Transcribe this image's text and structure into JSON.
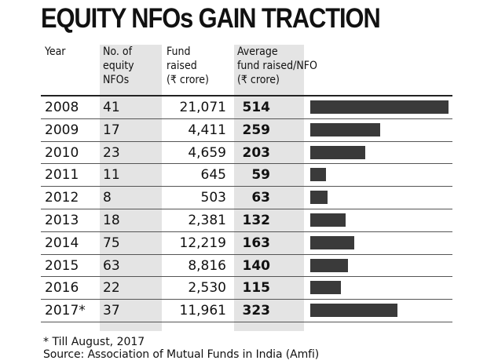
{
  "chart_data": {
    "type": "table",
    "title": "EQUITY NFOs GAIN TRACTION",
    "columns": [
      "Year",
      "No. of equity NFOs",
      "Fund raised (₹ crore)",
      "Average fund raised/NFO (₹ crore)"
    ],
    "header": {
      "year": "Year",
      "nfos": [
        "No. of",
        "equity",
        "NFOs"
      ],
      "fund": [
        "Fund",
        "raised",
        "(₹ crore)"
      ],
      "avg": [
        "Average",
        "fund raised/NFO",
        "(₹ crore)"
      ]
    },
    "rows": [
      {
        "year": "2008",
        "nfos": "41",
        "fund": "21,071",
        "avg": "514",
        "avg_value": 514
      },
      {
        "year": "2009",
        "nfos": "17",
        "fund": "4,411",
        "avg": "259",
        "avg_value": 259
      },
      {
        "year": "2010",
        "nfos": "23",
        "fund": "4,659",
        "avg": "203",
        "avg_value": 203
      },
      {
        "year": "2011",
        "nfos": "11",
        "fund": "645",
        "avg": "59",
        "avg_value": 59
      },
      {
        "year": "2012",
        "nfos": "8",
        "fund": "503",
        "avg": "63",
        "avg_value": 63
      },
      {
        "year": "2013",
        "nfos": "18",
        "fund": "2,381",
        "avg": "132",
        "avg_value": 132
      },
      {
        "year": "2014",
        "nfos": "75",
        "fund": "12,219",
        "avg": "163",
        "avg_value": 163
      },
      {
        "year": "2015",
        "nfos": "63",
        "fund": "8,816",
        "avg": "140",
        "avg_value": 140
      },
      {
        "year": "2016",
        "nfos": "22",
        "fund": "2,530",
        "avg": "115",
        "avg_value": 115
      },
      {
        "year": "2017*",
        "nfos": "37",
        "fund": "11,961",
        "avg": "323",
        "avg_value": 323
      }
    ],
    "bar_series": {
      "name": "Average fund raised/NFO",
      "max": 514
    },
    "footnote": "* Till August, 2017",
    "source": "Source: Association of Mutual Funds in India (Amfi)"
  },
  "colors": {
    "bar": "#3a3a3a",
    "shade": "#e4e4e4",
    "text": "#111111"
  }
}
